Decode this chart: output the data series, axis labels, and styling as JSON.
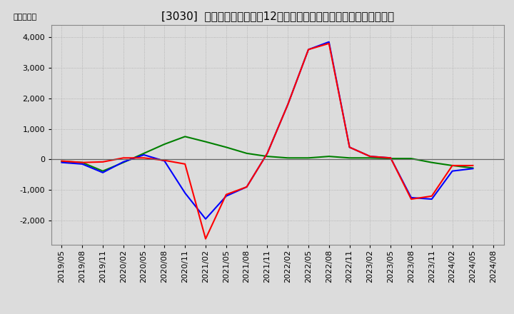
{
  "title": "[3030]  キャッシュフローの12か月移動合計の対前年同期増減額の推移",
  "ylabel": "（百万円）",
  "ylim": [
    -2800,
    4400
  ],
  "yticks": [
    -2000,
    -1000,
    0,
    1000,
    2000,
    3000,
    4000
  ],
  "background_color": "#dcdcdc",
  "plot_bg_color": "#dcdcdc",
  "x_labels": [
    "2019/05",
    "2019/08",
    "2019/11",
    "2020/02",
    "2020/05",
    "2020/08",
    "2020/11",
    "2021/02",
    "2021/05",
    "2021/08",
    "2021/11",
    "2022/02",
    "2022/05",
    "2022/08",
    "2022/11",
    "2023/02",
    "2023/05",
    "2023/08",
    "2023/11",
    "2024/02",
    "2024/05",
    "2024/08"
  ],
  "operating_cf": [
    -50,
    -100,
    -80,
    50,
    50,
    -30,
    -150,
    -2600,
    -1150,
    -900,
    200,
    1800,
    3600,
    3800,
    400,
    100,
    50,
    -1300,
    -1200,
    -200,
    -200,
    null
  ],
  "investing_cf": [
    -60,
    -100,
    -380,
    -100,
    200,
    500,
    750,
    580,
    400,
    200,
    100,
    50,
    50,
    100,
    50,
    50,
    30,
    30,
    -100,
    -200,
    -280,
    null
  ],
  "free_cf": [
    -100,
    -150,
    -430,
    -80,
    150,
    -50,
    -1100,
    -1950,
    -1200,
    -900,
    200,
    1800,
    3600,
    3850,
    400,
    100,
    50,
    -1250,
    -1300,
    -380,
    -300,
    null
  ],
  "operating_color": "#ff0000",
  "investing_color": "#008000",
  "free_color": "#0000ff",
  "title_fontsize": 11,
  "tick_fontsize": 8,
  "legend_fontsize": 9,
  "linewidth": 1.5
}
